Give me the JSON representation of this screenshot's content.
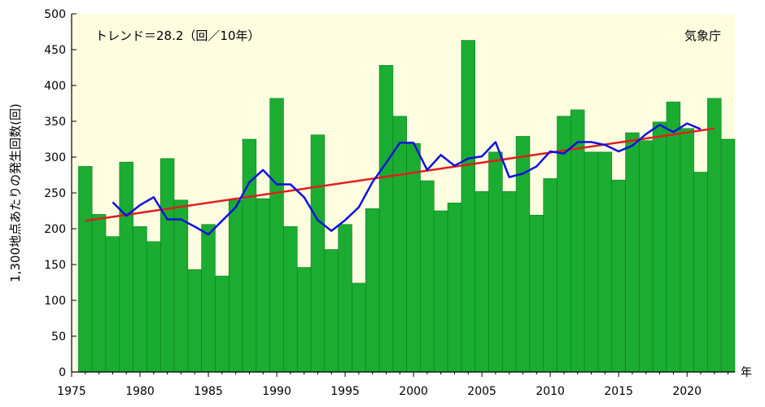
{
  "chart_data": {
    "type": "bar",
    "trend_label": "トレンド＝28.2（回／10年）",
    "source_label": "気象庁",
    "ylabel": "1,300地点あたりの発生回数(回)",
    "xlabel": "年",
    "ylim": [
      0,
      500
    ],
    "xlim": [
      1975,
      2023.5
    ],
    "y_ticks": [
      0,
      50,
      100,
      150,
      200,
      250,
      300,
      350,
      400,
      450,
      500
    ],
    "x_ticks": [
      1975,
      1980,
      1985,
      1990,
      1995,
      2000,
      2005,
      2010,
      2015,
      2020
    ],
    "grid": false,
    "colors": {
      "bar": "#1aad32",
      "bar_edge": "#0d7a1f",
      "background": "#fffde0",
      "trend": "#e01e1e",
      "moving_average": "#1010e0"
    },
    "series": [
      {
        "kind": "bar",
        "x": [
          1976,
          1977,
          1978,
          1979,
          1980,
          1981,
          1982,
          1983,
          1984,
          1985,
          1986,
          1987,
          1988,
          1989,
          1990,
          1991,
          1992,
          1993,
          1994,
          1995,
          1996,
          1997,
          1998,
          1999,
          2000,
          2001,
          2002,
          2003,
          2004,
          2005,
          2006,
          2007,
          2008,
          2009,
          2010,
          2011,
          2012,
          2013,
          2014,
          2015,
          2016,
          2017,
          2018,
          2019,
          2020,
          2021,
          2022,
          2023
        ],
        "values": [
          287,
          220,
          189,
          293,
          203,
          182,
          298,
          240,
          143,
          206,
          134,
          240,
          325,
          242,
          382,
          203,
          146,
          331,
          171,
          206,
          124,
          228,
          428,
          357,
          319,
          267,
          225,
          236,
          463,
          252,
          307,
          252,
          329,
          219,
          270,
          357,
          366,
          307,
          307,
          268,
          334,
          323,
          349,
          377,
          340,
          279,
          382,
          325
        ]
      },
      {
        "kind": "line",
        "x": [
          1978,
          1979,
          1980,
          1981,
          1982,
          1983,
          1984,
          1985,
          1986,
          1987,
          1988,
          1989,
          1990,
          1991,
          1992,
          1993,
          1994,
          1995,
          1996,
          1997,
          1998,
          1999,
          2000,
          2001,
          2002,
          2003,
          2004,
          2005,
          2006,
          2007,
          2008,
          2009,
          2010,
          2011,
          2012,
          2013,
          2014,
          2015,
          2016,
          2017,
          2018,
          2019,
          2020,
          2021
        ],
        "values": [
          237,
          218,
          233,
          244,
          213,
          213,
          203,
          192,
          211,
          230,
          265,
          282,
          262,
          262,
          244,
          212,
          197,
          212,
          230,
          265,
          292,
          320,
          320,
          282,
          303,
          288,
          298,
          301,
          321,
          272,
          277,
          287,
          308,
          305,
          321,
          321,
          317,
          308,
          316,
          332,
          345,
          335,
          347,
          339
        ]
      },
      {
        "kind": "trend",
        "x": [
          1976,
          2022
        ],
        "values": [
          211,
          340
        ]
      }
    ]
  }
}
